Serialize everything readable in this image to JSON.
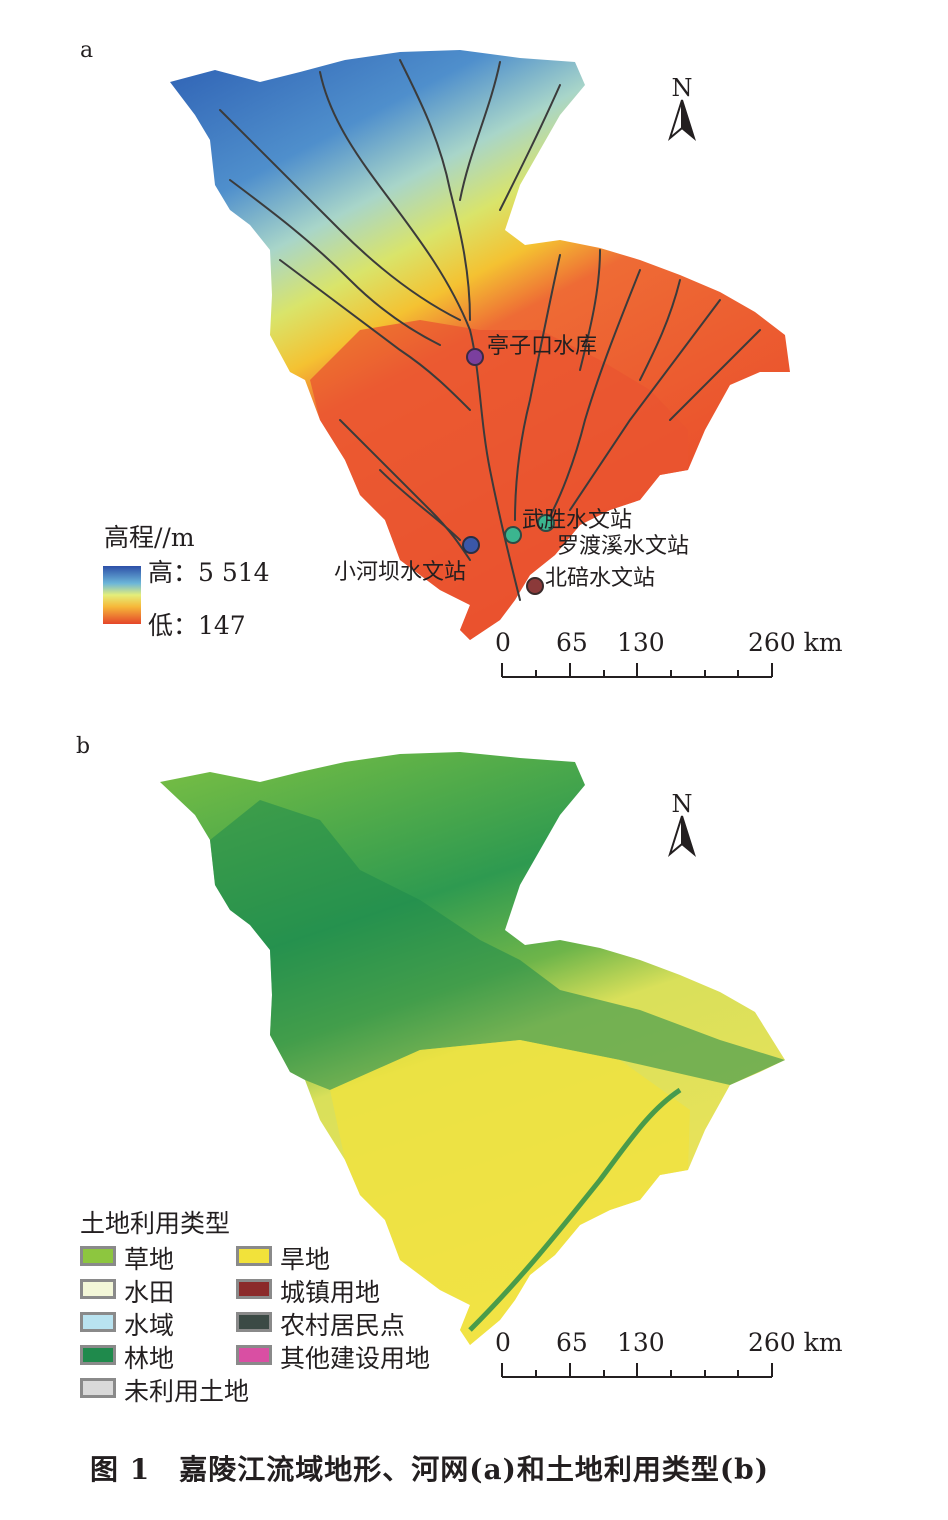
{
  "panel_a": {
    "label": "a",
    "north": "N",
    "elevation_legend": {
      "title": "高程//m",
      "high_label": "高：5 514",
      "low_label": "低：147"
    },
    "stations": [
      {
        "name": "亭子口水库",
        "color": "#7b3f9e"
      },
      {
        "name": "武胜水文站",
        "color": "#3bb58f"
      },
      {
        "name": "罗渡溪水文站",
        "color": "#3bb58f"
      },
      {
        "name": "小河坝水文站",
        "color": "#3b57a8"
      },
      {
        "name": "北碚水文站",
        "color": "#8b3a3a"
      }
    ],
    "scale": {
      "ticks": [
        "0",
        "65",
        "130",
        "260 km"
      ]
    }
  },
  "panel_b": {
    "label": "b",
    "north": "N",
    "landuse_legend": {
      "title": "土地利用类型",
      "items": [
        {
          "name": "草地",
          "color": "#8dc63f"
        },
        {
          "name": "旱地",
          "color": "#f2e23a"
        },
        {
          "name": "水田",
          "color": "#f3f7d8"
        },
        {
          "name": "城镇用地",
          "color": "#8b2a2a"
        },
        {
          "name": "水域",
          "color": "#b9e3f0"
        },
        {
          "name": "农村居民点",
          "color": "#3b4a45"
        },
        {
          "name": "林地",
          "color": "#1f8a4c"
        },
        {
          "name": "其他建设用地",
          "color": "#d94fa3"
        },
        {
          "name": "未利用土地",
          "color": "#d9d9d9"
        }
      ]
    },
    "scale": {
      "ticks": [
        "0",
        "65",
        "130",
        "260 km"
      ]
    }
  },
  "caption": "图 1　嘉陵江流域地形、河网(a)和土地利用类型(b)"
}
